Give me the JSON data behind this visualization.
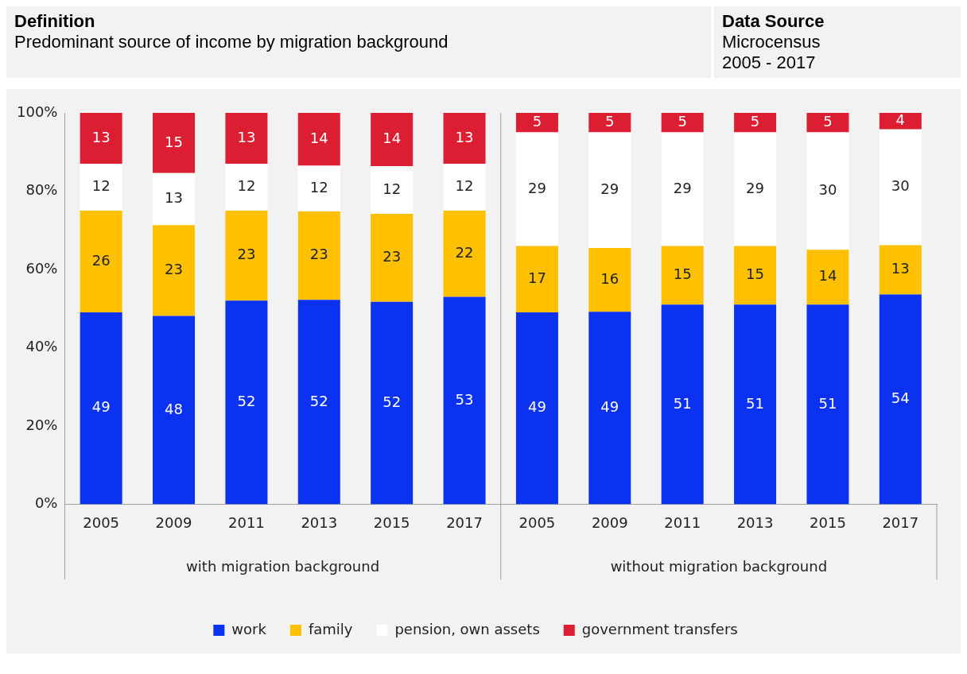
{
  "chart_data": {
    "type": "bar",
    "title": "Predominant source of income by migration background",
    "categories": [
      "2005",
      "2009",
      "2011",
      "2013",
      "2015",
      "2017",
      "2005",
      "2009",
      "2011",
      "2013",
      "2015",
      "2017"
    ],
    "series": [
      {
        "name": "work",
        "color": "#0a32f0",
        "values": [
          49,
          48.1,
          52,
          52.2,
          51.7,
          53,
          49,
          49.2,
          51,
          51,
          51,
          53.6
        ],
        "value_labels": [
          "49",
          "48",
          "52",
          "52",
          "52",
          "53",
          "49",
          "49",
          "51",
          "51",
          "51",
          "54"
        ]
      },
      {
        "name": "family",
        "color": "#ffc000",
        "values": [
          26,
          23.2,
          23,
          22.6,
          22.5,
          22,
          17,
          16.3,
          15,
          15,
          14,
          12.6
        ],
        "value_labels": [
          "26",
          "23",
          "23",
          "23",
          "23",
          "22",
          "17",
          "16",
          "15",
          "15",
          "14",
          "13"
        ]
      },
      {
        "name": "pension, own assets",
        "color": "#ffffff",
        "values": [
          12,
          13.3,
          12,
          11.7,
          12.2,
          12,
          29,
          29.5,
          29,
          29,
          30,
          29.6
        ],
        "value_labels": [
          "12",
          "13",
          "12",
          "12",
          "12",
          "12",
          "29",
          "29",
          "29",
          "29",
          "30",
          "30"
        ]
      },
      {
        "name": "government transfers",
        "color": "#dc1e32",
        "values": [
          13,
          15.4,
          13,
          13.5,
          13.6,
          13,
          5,
          5,
          5,
          5,
          5,
          4.2
        ],
        "value_labels": [
          "13",
          "15",
          "13",
          "14",
          "14",
          "13",
          "5",
          "5",
          "5",
          "5",
          "5",
          "4"
        ]
      }
    ],
    "stacked": true,
    "grid": false,
    "legend": "bottom",
    "ylim": [
      0,
      100
    ],
    "yticks": [
      {
        "value": 0,
        "label": "0%"
      },
      {
        "value": 20,
        "label": "20%"
      },
      {
        "value": 40,
        "label": "40%"
      },
      {
        "value": 60,
        "label": "60%"
      },
      {
        "value": 80,
        "label": "80%"
      },
      {
        "value": 100,
        "label": "100%"
      }
    ],
    "annotations": [
      "Definition",
      "Data Source",
      "Microcensus",
      "2005 - 2017",
      "with migration background",
      "without migration background"
    ]
  }
}
